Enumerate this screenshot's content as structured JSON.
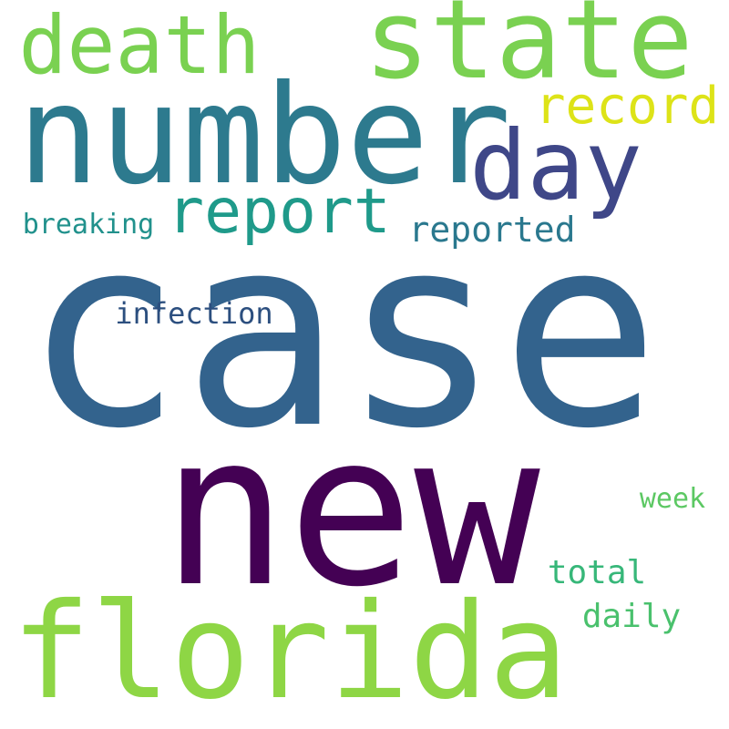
{
  "words": [
    {
      "text": "case",
      "color": "#33638d"
    },
    {
      "text": "new",
      "color": "#440154"
    },
    {
      "text": "number",
      "color": "#2d7a8e"
    },
    {
      "text": "florida",
      "color": "#8ed645"
    },
    {
      "text": "state",
      "color": "#7ad151"
    },
    {
      "text": "death",
      "color": "#7ad151"
    },
    {
      "text": "day",
      "color": "#3f4788"
    },
    {
      "text": "report",
      "color": "#1f9a8a"
    },
    {
      "text": "record",
      "color": "#dde318"
    },
    {
      "text": "reported",
      "color": "#2a788e"
    },
    {
      "text": "breaking",
      "color": "#21918c"
    },
    {
      "text": "infection",
      "color": "#2c4f7f"
    },
    {
      "text": "week",
      "color": "#5cc863"
    },
    {
      "text": "total",
      "color": "#37b779"
    },
    {
      "text": "daily",
      "color": "#4ac16d"
    }
  ]
}
